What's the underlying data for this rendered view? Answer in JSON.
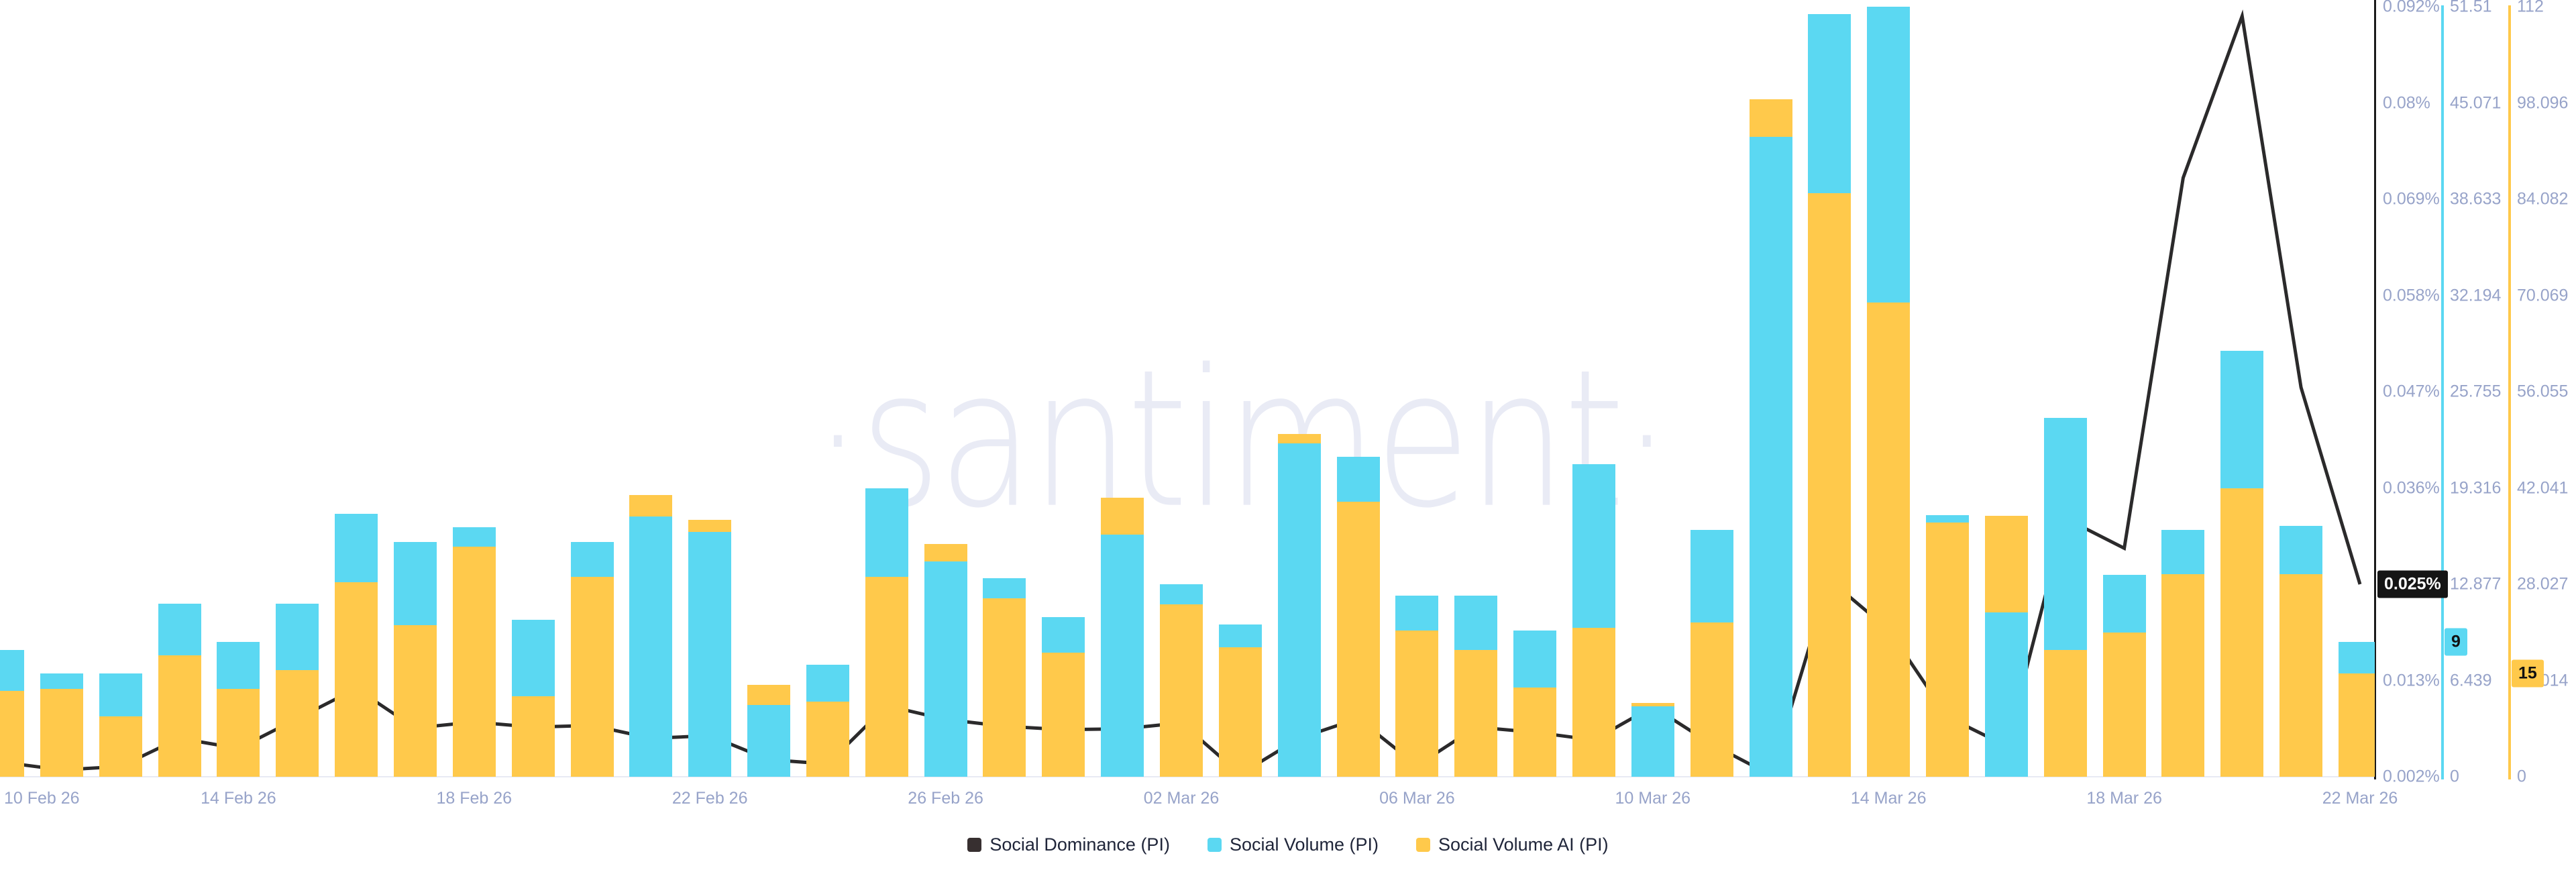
{
  "watermark": "·santiment·",
  "colors": {
    "volume": "#5BD8F2",
    "volume_ai": "#FFC94B",
    "dominance_line": "#2B2A2B",
    "dominance_swatch": "#372F30",
    "axis_text": "#97A3C9",
    "baseline": "#E8EAF3",
    "badge_dark_bg": "#151515",
    "watermark_color": "#E9EBF5"
  },
  "legend": {
    "items": [
      {
        "label": "Social Dominance (PI)",
        "color_key": "dominance_swatch"
      },
      {
        "label": "Social Volume (PI)",
        "color_key": "volume"
      },
      {
        "label": "Social Volume AI (PI)",
        "color_key": "volume_ai"
      }
    ]
  },
  "badges": {
    "dominance": "0.025%",
    "volume": "9",
    "volume_ai": "15"
  },
  "axes": {
    "dominance": {
      "ticks": [
        "0.092%",
        "0.08%",
        "0.069%",
        "0.058%",
        "0.047%",
        "0.036%",
        "0.025%",
        "0.013%",
        "0.002%"
      ]
    },
    "volume": {
      "ticks": [
        "51.51",
        "45.071",
        "38.633",
        "32.194",
        "25.755",
        "19.316",
        "12.877",
        "6.439",
        "0"
      ]
    },
    "volume_ai": {
      "ticks": [
        "112",
        "98.096",
        "84.082",
        "70.069",
        "56.055",
        "42.041",
        "28.027",
        "14.014",
        "0"
      ]
    }
  },
  "x_axis": {
    "tick_labels": [
      "10 Feb 26",
      "14 Feb 26",
      "18 Feb 26",
      "22 Feb 26",
      "26 Feb 26",
      "02 Mar 26",
      "06 Mar 26",
      "10 Mar 26",
      "14 Mar 26",
      "18 Mar 26",
      "22 Mar 26"
    ],
    "tick_every_n_points": 4
  },
  "chart_data": {
    "type": "bar+line",
    "n_points": 41,
    "legend_position": "bottom-center",
    "grid": false,
    "series": [
      {
        "name": "Social Dominance (PI)",
        "type": "line",
        "axis": "percent",
        "ylim": [
          0.002,
          0.092
        ],
        "unit": "%",
        "values": [
          0.0037,
          0.0028,
          0.0032,
          0.0065,
          0.0053,
          0.0088,
          0.0123,
          0.0077,
          0.0084,
          0.0078,
          0.008,
          0.0065,
          0.0068,
          0.004,
          0.0035,
          0.0103,
          0.0087,
          0.0079,
          0.0075,
          0.0076,
          0.0083,
          0.0023,
          0.0065,
          0.0088,
          0.0033,
          0.0078,
          0.0072,
          0.0063,
          0.0102,
          0.0058,
          0.0022,
          0.025,
          0.0192,
          0.009,
          0.0056,
          0.0322,
          0.0287,
          0.072,
          0.0909,
          0.0475,
          0.0245
        ]
      },
      {
        "name": "Social Volume (PI)",
        "type": "bar",
        "axis": "volume",
        "ylim": [
          0,
          51.51
        ],
        "values": [
          8.5,
          6.9,
          6.9,
          11.6,
          9.0,
          11.6,
          17.6,
          15.7,
          16.7,
          10.5,
          15.7,
          17.4,
          16.4,
          4.8,
          7.5,
          19.3,
          14.4,
          13.3,
          10.7,
          16.2,
          12.9,
          10.2,
          22.3,
          21.4,
          12.1,
          12.1,
          9.8,
          20.9,
          4.7,
          16.5,
          42.8,
          51.0,
          51.5,
          17.5,
          11.0,
          24.0,
          13.5,
          16.5,
          28.5,
          16.8,
          9.0
        ]
      },
      {
        "name": "Social Volume AI (PI)",
        "type": "bar",
        "axis": "volume_ai",
        "ylim": [
          0,
          112.11
        ],
        "values": [
          12.5,
          12.8,
          8.8,
          17.7,
          12.8,
          15.5,
          28.3,
          22.1,
          33.5,
          11.7,
          29.1,
          41.0,
          37.4,
          13.4,
          10.9,
          29.1,
          33.9,
          26.0,
          18.1,
          40.6,
          25.1,
          18.9,
          49.9,
          40.0,
          21.3,
          18.5,
          13.0,
          21.7,
          10.7,
          22.5,
          98.6,
          85.0,
          69.0,
          37.0,
          38.0,
          18.5,
          21.0,
          29.5,
          42.0,
          29.5,
          15.0
        ]
      }
    ],
    "note": "bars of the two volume series share x positions; the shorter bar is drawn in front of the taller one"
  }
}
